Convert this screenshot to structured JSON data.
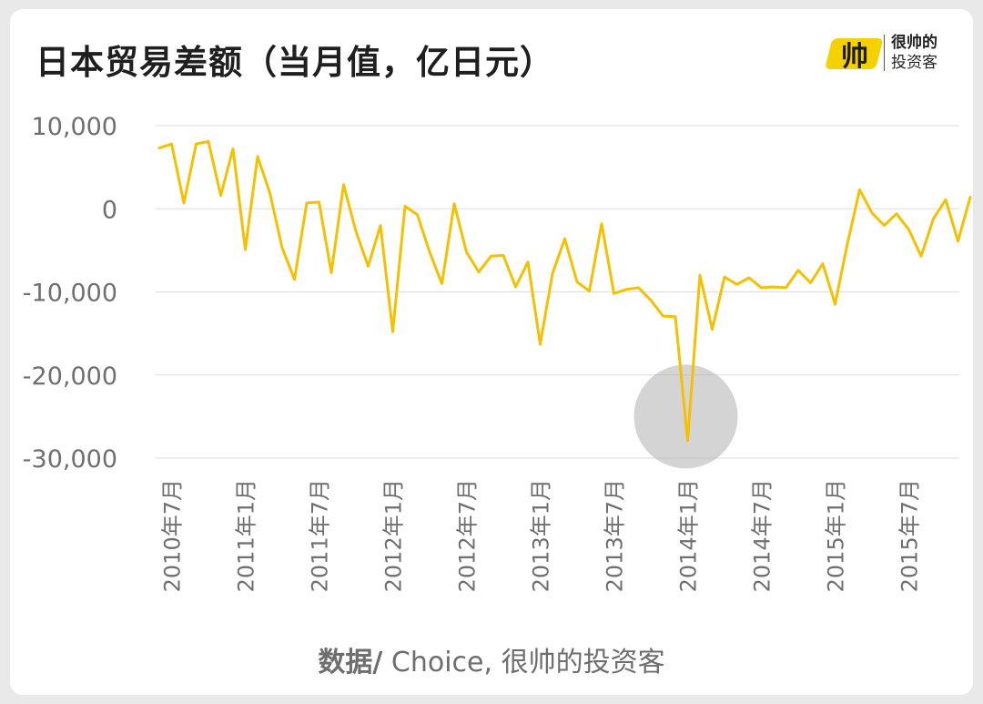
{
  "title": "日本贸易差额（当月值，亿日元）",
  "logo": {
    "mark_text": "帅",
    "name_line1": "很帅的",
    "name_line2": "投资客"
  },
  "footer": {
    "source_label": "数据/",
    "source_text": " Choice, 很帅的投资客"
  },
  "colors": {
    "line": "#f5c000",
    "grid": "#dddddd",
    "highlight": "#b0b0b0",
    "logo_yellow": "#f5d100"
  },
  "chart_data": {
    "type": "line",
    "title": "日本贸易差额（当月值，亿日元）",
    "ylim": [
      -30000,
      10000
    ],
    "yticks": [
      10000,
      0,
      -10000,
      -20000,
      -30000
    ],
    "ytick_labels": [
      "10,000",
      "0",
      "-10,000",
      "-20,000",
      "-30,000"
    ],
    "xtick_labels": [
      "2010年7月",
      "2011年1月",
      "2011年7月",
      "2012年1月",
      "2012年7月",
      "2013年1月",
      "2013年7月",
      "2014年1月",
      "2014年7月",
      "2015年1月",
      "2015年7月"
    ],
    "grid": true,
    "annotation": {
      "type": "circle",
      "label": "",
      "at": "2014年1月",
      "value": -27900
    },
    "x": [
      "2010-06",
      "2010-07",
      "2010-08",
      "2010-09",
      "2010-10",
      "2010-11",
      "2010-12",
      "2011-01",
      "2011-02",
      "2011-03",
      "2011-04",
      "2011-05",
      "2011-06",
      "2011-07",
      "2011-08",
      "2011-09",
      "2011-10",
      "2011-11",
      "2011-12",
      "2012-01",
      "2012-02",
      "2012-03",
      "2012-04",
      "2012-05",
      "2012-06",
      "2012-07",
      "2012-08",
      "2012-09",
      "2012-10",
      "2012-11",
      "2012-12",
      "2013-01",
      "2013-02",
      "2013-03",
      "2013-04",
      "2013-05",
      "2013-06",
      "2013-07",
      "2013-08",
      "2013-09",
      "2013-10",
      "2013-11",
      "2013-12",
      "2014-01",
      "2014-02",
      "2014-03",
      "2014-04",
      "2014-05",
      "2014-06",
      "2014-07",
      "2014-08",
      "2014-09",
      "2014-10",
      "2014-11",
      "2014-12",
      "2015-01",
      "2015-02",
      "2015-03",
      "2015-04",
      "2015-05",
      "2015-06",
      "2015-07",
      "2015-08",
      "2015-09",
      "2015-10",
      "2015-11",
      "2015-12"
    ],
    "series": [
      {
        "values": [
          7300,
          7800,
          700,
          7800,
          8100,
          1600,
          7200,
          -4900,
          6300,
          1900,
          -4700,
          -8500,
          700,
          800,
          -7700,
          2900,
          -2700,
          -6900,
          -2000,
          -14800,
          300,
          -700,
          -5200,
          -9000,
          600,
          -5200,
          -7600,
          -5700,
          -5600,
          -9400,
          -6400,
          -16300,
          -7800,
          -3600,
          -8800,
          -9900,
          -1800,
          -10200,
          -9700,
          -9500,
          -11000,
          -12900,
          -13000,
          -27900,
          -8000,
          -14500,
          -8200,
          -9100,
          -8300,
          -9500,
          -9400,
          -9500,
          -7400,
          -8900,
          -6600,
          -11500,
          -4200,
          2300,
          -500,
          -2000,
          -600,
          -2500,
          -5700,
          -1200,
          1100,
          -3900,
          1400
        ]
      }
    ]
  }
}
